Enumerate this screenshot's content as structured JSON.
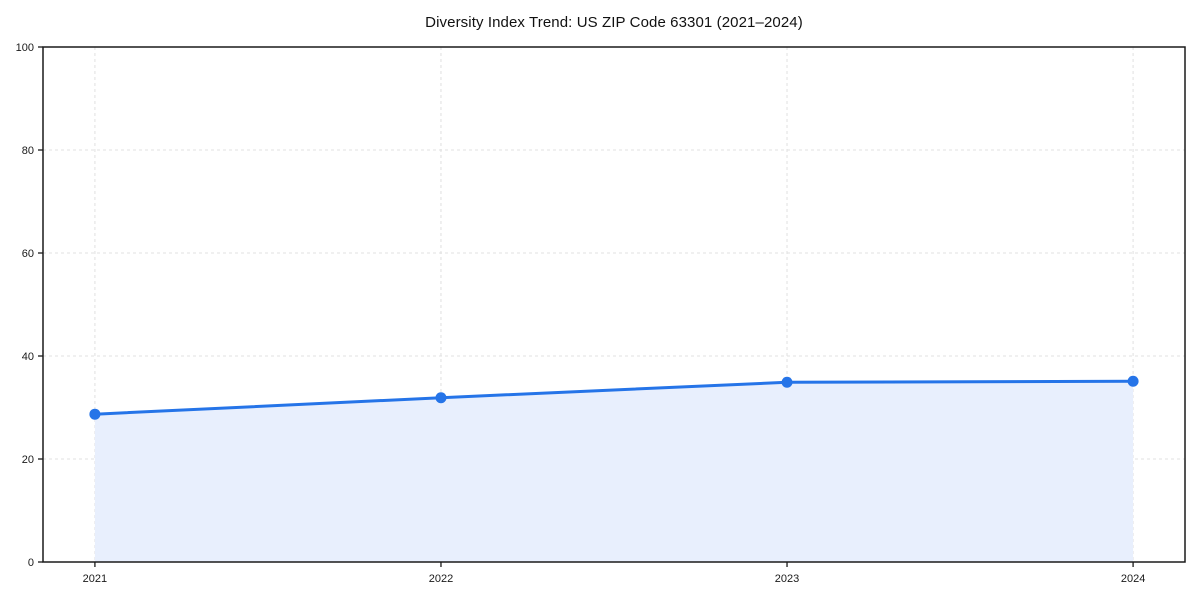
{
  "figure": {
    "background": "#ffffff"
  },
  "chart_data": {
    "type": "line",
    "area_fill": true,
    "title": "Diversity Index Trend: US ZIP Code 63301 (2021–2024)",
    "categories": [
      "2021",
      "2022",
      "2023",
      "2024"
    ],
    "series": [
      {
        "name": "Diversity Index",
        "values": [
          28.7,
          31.9,
          34.9,
          35.1
        ]
      }
    ],
    "xlabel": "",
    "ylabel": "",
    "ylim": [
      0,
      100
    ],
    "yticks": [
      0,
      20,
      40,
      60,
      80,
      100
    ],
    "grid": "dashed",
    "legend": "none",
    "colors": {
      "line": "#2574e8",
      "marker": "#2574e8",
      "fill": "#e8effd",
      "grid": "#e0e0e0",
      "axis": "#1a1a1a",
      "tick_text": "#1a1a1a",
      "title_text": "#111111"
    }
  }
}
